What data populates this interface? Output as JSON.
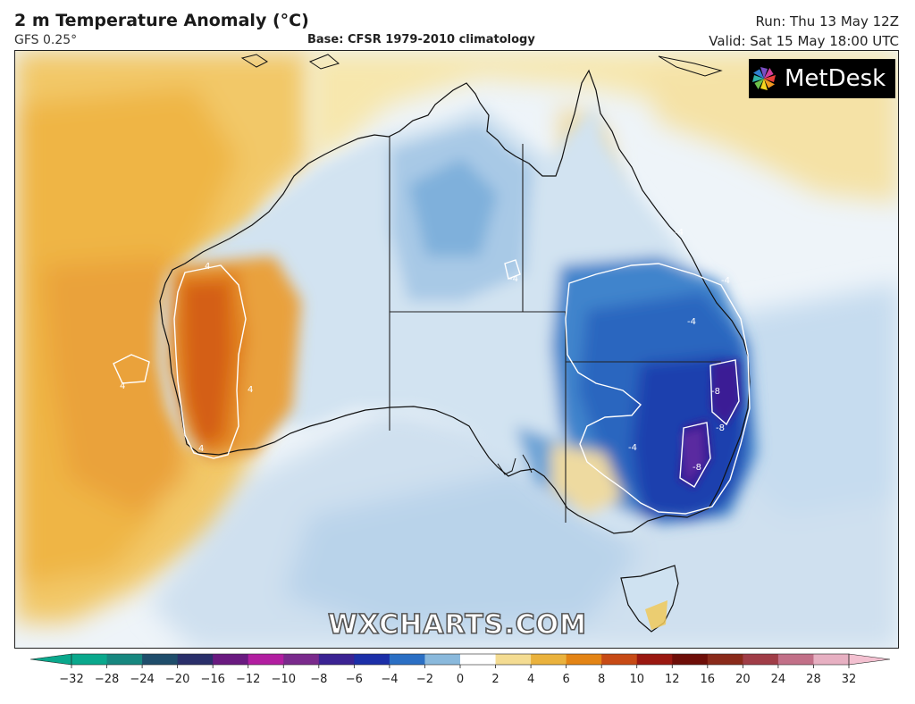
{
  "header": {
    "title": "2 m Temperature Anomaly (°C)",
    "model": "GFS 0.25°",
    "base": "Base: CFSR 1979-2010 climatology",
    "run": "Run: Thu 13 May 12Z",
    "valid": "Valid: Sat 15 May 18:00 UTC"
  },
  "logo": {
    "text": "MetDesk",
    "icon": "metdesk-pinwheel-icon"
  },
  "watermark": "WXCHARTS.COM",
  "colorbar": {
    "ticks": [
      "−32",
      "−28",
      "−24",
      "−20",
      "−16",
      "−12",
      "−10",
      "−8",
      "−6",
      "−4",
      "−2",
      "0",
      "2",
      "4",
      "6",
      "8",
      "10",
      "12",
      "16",
      "20",
      "24",
      "28",
      "32"
    ],
    "colors": [
      "#0aa88c",
      "#17877f",
      "#1f4d6b",
      "#2a2f6a",
      "#6a1a80",
      "#b21ea0",
      "#7a2a8c",
      "#3b2393",
      "#1c2fa8",
      "#2b6fc4",
      "#8ab9dc",
      "#ffffff",
      "#f4dc92",
      "#eab23d",
      "#e38415",
      "#c74a15",
      "#9a1810",
      "#6e0e08",
      "#8a2a1a",
      "#a03d47",
      "#c27088",
      "#e7b0c2"
    ],
    "lowColor": "#0aa88c",
    "highColor": "#f3c0d0"
  },
  "contour_labels": {
    "map_neg8": "-8",
    "map_neg4": "-4",
    "map_pos4": "4"
  }
}
